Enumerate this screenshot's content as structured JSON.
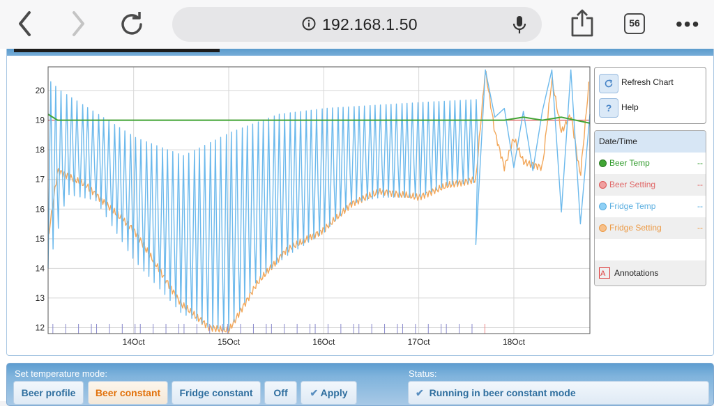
{
  "browser": {
    "url": "192.168.1.50",
    "tab_count": "56",
    "icons": [
      "back-icon",
      "forward-icon",
      "reload-icon",
      "info-icon",
      "microphone-icon",
      "share-icon",
      "more-icon"
    ]
  },
  "legend": {
    "refresh_label": "Refresh Chart",
    "help_label": "Help",
    "help_glyph": "?",
    "header": "Date/Time",
    "series": [
      {
        "name": "Beer Temp",
        "value": "--",
        "color": "#41a535"
      },
      {
        "name": "Beer Setting",
        "value": "--",
        "color": "#e06666"
      },
      {
        "name": "Fridge Temp",
        "value": "--",
        "color": "#6cb9ec"
      },
      {
        "name": "Fridge Setting",
        "value": "--",
        "color": "#f2a75a"
      }
    ],
    "annotations_label": "Annotations",
    "annotations_glyph": "A"
  },
  "chart_data": {
    "type": "line",
    "x_ticks": [
      "14Oct",
      "15Oct",
      "16Oct",
      "17Oct",
      "18Oct"
    ],
    "y_ticks": [
      12,
      13,
      14,
      15,
      16,
      17,
      18,
      19,
      20
    ],
    "ylim": [
      11.8,
      20.8
    ],
    "xlim": [
      13.1,
      18.8
    ],
    "grid": true,
    "series": [
      {
        "name": "Beer Temp",
        "color": "#41a535",
        "x": [
          13.1,
          13.2,
          13.3,
          14,
          15,
          16,
          17,
          17.6,
          17.9,
          18.1,
          18.3,
          18.5,
          18.8
        ],
        "y": [
          19.2,
          19.0,
          19.0,
          19.0,
          19.0,
          19.0,
          19.0,
          19.0,
          19.0,
          19.1,
          19.0,
          19.1,
          18.9
        ]
      },
      {
        "name": "Beer Setting",
        "color": "#e06666",
        "x": [
          13.1,
          18.8
        ],
        "y": [
          19.0,
          19.0
        ]
      },
      {
        "name": "Fridge Setting",
        "color": "#f2a75a",
        "x": [
          13.1,
          13.2,
          13.5,
          14.0,
          14.5,
          14.8,
          15.0,
          15.3,
          15.6,
          16.0,
          16.3,
          16.6,
          17.0,
          17.3,
          17.6,
          17.7,
          17.8,
          17.9,
          18.0,
          18.1,
          18.2,
          18.3,
          18.4,
          18.5,
          18.6,
          18.7,
          18.8
        ],
        "y": [
          15.0,
          17.3,
          16.8,
          15.3,
          12.8,
          12.0,
          11.9,
          13.5,
          14.6,
          15.3,
          16.2,
          16.6,
          16.4,
          16.8,
          17.0,
          20.7,
          18.6,
          17.4,
          18.4,
          17.6,
          17.5,
          17.4,
          20.4,
          18.6,
          19.2,
          17.1,
          20.6
        ]
      },
      {
        "name": "Fridge Temp",
        "color": "#6cb9ec",
        "kind": "oscillating",
        "lower_x": [
          13.1,
          13.3,
          13.6,
          14.0,
          14.5,
          14.8,
          15.0,
          15.3,
          15.6,
          16.0,
          16.3,
          16.6,
          17.0,
          17.3,
          17.6
        ],
        "lower_y": [
          14.0,
          16.5,
          16.3,
          14.3,
          12.5,
          12.0,
          11.9,
          13.6,
          14.4,
          15.2,
          16.2,
          16.4,
          16.4,
          16.8,
          16.9
        ],
        "upper_x": [
          13.1,
          13.2,
          13.4,
          13.6,
          14.0,
          14.5,
          15.0,
          15.5,
          16.0,
          16.5,
          17.0,
          17.6
        ],
        "upper_y": [
          20.3,
          20.0,
          19.6,
          19.2,
          18.4,
          17.8,
          18.6,
          19.2,
          19.4,
          19.5,
          19.6,
          19.7
        ],
        "tail_x": [
          17.6,
          17.7,
          17.8,
          17.9,
          18.0,
          18.1,
          18.2,
          18.3,
          18.4,
          18.5,
          18.6,
          18.7,
          18.8
        ],
        "tail_y": [
          14.8,
          20.7,
          19.1,
          19.4,
          17.4,
          19.3,
          17.3,
          19.3,
          20.7,
          15.9,
          20.7,
          15.5,
          19.2
        ]
      }
    ]
  },
  "controls": {
    "title": "Set temperature mode:",
    "modes": [
      "Beer profile",
      "Beer constant",
      "Fridge constant",
      "Off"
    ],
    "active_mode": "Beer constant",
    "apply_label": "Apply",
    "status_title": "Status:",
    "status_text": "Running in beer constant mode"
  }
}
